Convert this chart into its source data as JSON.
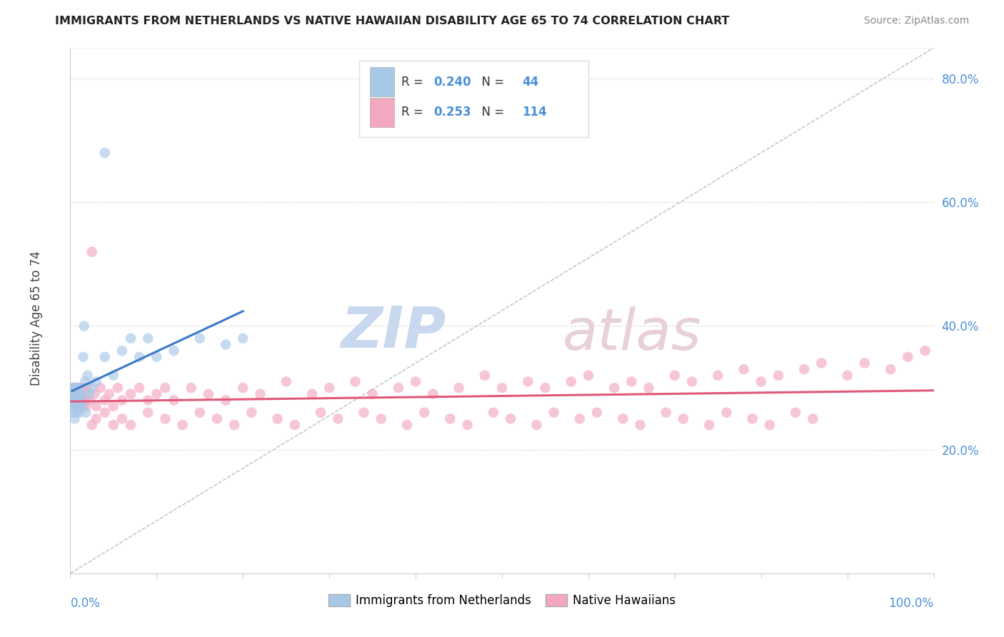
{
  "title": "IMMIGRANTS FROM NETHERLANDS VS NATIVE HAWAIIAN DISABILITY AGE 65 TO 74 CORRELATION CHART",
  "source": "Source: ZipAtlas.com",
  "ylabel": "Disability Age 65 to 74",
  "legend_label1": "Immigrants from Netherlands",
  "legend_label2": "Native Hawaiians",
  "r1": "0.240",
  "n1": "44",
  "r2": "0.253",
  "n2": "114",
  "color_blue": "#a8c8e8",
  "color_pink": "#f4a8c0",
  "color_blue_line": "#3a78c9",
  "color_pink_line": "#e05878",
  "color_diag": "#bbbbbb",
  "xlim": [
    0.0,
    1.0
  ],
  "ylim": [
    0.0,
    0.85
  ],
  "yticks": [
    0.2,
    0.4,
    0.6,
    0.8
  ],
  "ytick_labels": [
    "20.0%",
    "40.0%",
    "60.0%",
    "80.0%"
  ],
  "blue_scatter_x": [
    0.002,
    0.003,
    0.003,
    0.004,
    0.004,
    0.005,
    0.005,
    0.005,
    0.006,
    0.006,
    0.007,
    0.007,
    0.007,
    0.008,
    0.008,
    0.009,
    0.009,
    0.01,
    0.01,
    0.011,
    0.011,
    0.012,
    0.013,
    0.014,
    0.015,
    0.016,
    0.017,
    0.018,
    0.02,
    0.022,
    0.025,
    0.03,
    0.04,
    0.05,
    0.06,
    0.07,
    0.08,
    0.09,
    0.1,
    0.12,
    0.15,
    0.18,
    0.2,
    0.04
  ],
  "blue_scatter_y": [
    0.28,
    0.26,
    0.3,
    0.27,
    0.29,
    0.25,
    0.27,
    0.29,
    0.28,
    0.3,
    0.26,
    0.28,
    0.3,
    0.27,
    0.29,
    0.28,
    0.3,
    0.26,
    0.28,
    0.29,
    0.27,
    0.28,
    0.29,
    0.27,
    0.35,
    0.4,
    0.31,
    0.26,
    0.32,
    0.29,
    0.3,
    0.31,
    0.35,
    0.32,
    0.36,
    0.38,
    0.35,
    0.38,
    0.35,
    0.36,
    0.38,
    0.37,
    0.38,
    0.68
  ],
  "pink_scatter_x": [
    0.002,
    0.003,
    0.004,
    0.005,
    0.005,
    0.006,
    0.007,
    0.007,
    0.008,
    0.008,
    0.009,
    0.009,
    0.01,
    0.01,
    0.011,
    0.012,
    0.013,
    0.014,
    0.015,
    0.016,
    0.017,
    0.018,
    0.02,
    0.022,
    0.025,
    0.028,
    0.03,
    0.035,
    0.04,
    0.045,
    0.05,
    0.055,
    0.06,
    0.07,
    0.08,
    0.09,
    0.1,
    0.11,
    0.12,
    0.14,
    0.16,
    0.18,
    0.2,
    0.22,
    0.25,
    0.28,
    0.3,
    0.33,
    0.35,
    0.38,
    0.4,
    0.42,
    0.45,
    0.48,
    0.5,
    0.53,
    0.55,
    0.58,
    0.6,
    0.63,
    0.65,
    0.67,
    0.7,
    0.72,
    0.75,
    0.78,
    0.8,
    0.82,
    0.85,
    0.87,
    0.9,
    0.92,
    0.95,
    0.97,
    0.99,
    0.025,
    0.03,
    0.04,
    0.05,
    0.06,
    0.07,
    0.09,
    0.11,
    0.13,
    0.15,
    0.17,
    0.19,
    0.21,
    0.24,
    0.26,
    0.29,
    0.31,
    0.34,
    0.36,
    0.39,
    0.41,
    0.44,
    0.46,
    0.49,
    0.51,
    0.54,
    0.56,
    0.59,
    0.61,
    0.64,
    0.66,
    0.69,
    0.71,
    0.74,
    0.76,
    0.79,
    0.81,
    0.84,
    0.86
  ],
  "pink_scatter_y": [
    0.3,
    0.28,
    0.29,
    0.27,
    0.3,
    0.28,
    0.29,
    0.27,
    0.3,
    0.28,
    0.29,
    0.27,
    0.28,
    0.3,
    0.27,
    0.29,
    0.28,
    0.27,
    0.3,
    0.28,
    0.29,
    0.27,
    0.3,
    0.28,
    0.52,
    0.29,
    0.27,
    0.3,
    0.28,
    0.29,
    0.27,
    0.3,
    0.28,
    0.29,
    0.3,
    0.28,
    0.29,
    0.3,
    0.28,
    0.3,
    0.29,
    0.28,
    0.3,
    0.29,
    0.31,
    0.29,
    0.3,
    0.31,
    0.29,
    0.3,
    0.31,
    0.29,
    0.3,
    0.32,
    0.3,
    0.31,
    0.3,
    0.31,
    0.32,
    0.3,
    0.31,
    0.3,
    0.32,
    0.31,
    0.32,
    0.33,
    0.31,
    0.32,
    0.33,
    0.34,
    0.32,
    0.34,
    0.33,
    0.35,
    0.36,
    0.24,
    0.25,
    0.26,
    0.24,
    0.25,
    0.24,
    0.26,
    0.25,
    0.24,
    0.26,
    0.25,
    0.24,
    0.26,
    0.25,
    0.24,
    0.26,
    0.25,
    0.26,
    0.25,
    0.24,
    0.26,
    0.25,
    0.24,
    0.26,
    0.25,
    0.24,
    0.26,
    0.25,
    0.26,
    0.25,
    0.24,
    0.26,
    0.25,
    0.24,
    0.26,
    0.25,
    0.24,
    0.26,
    0.25
  ],
  "background_color": "#ffffff"
}
